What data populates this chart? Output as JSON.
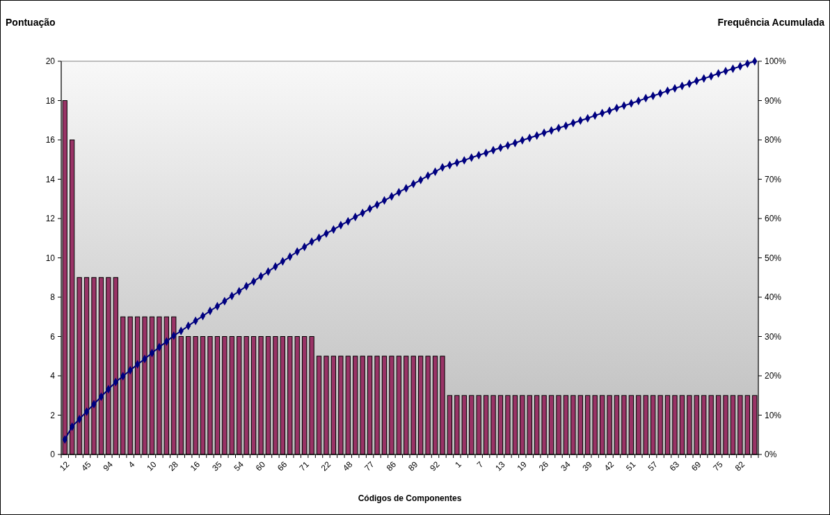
{
  "chart_data": {
    "type": "bar",
    "ylabel": "Pontuação",
    "y2label": "Frequência Acumulada",
    "xlabel": "Códigos de Componentes",
    "categories": [
      "12",
      null,
      null,
      "45",
      null,
      null,
      "94",
      null,
      null,
      "4",
      null,
      null,
      "10",
      null,
      null,
      "28",
      null,
      null,
      "16",
      null,
      null,
      "35",
      null,
      null,
      "54",
      null,
      null,
      "60",
      null,
      null,
      "66",
      null,
      null,
      "71",
      null,
      null,
      "22",
      null,
      null,
      "48",
      null,
      null,
      "77",
      null,
      null,
      "86",
      null,
      null,
      "89",
      null,
      null,
      "92",
      null,
      null,
      "1",
      null,
      null,
      "7",
      null,
      null,
      "13",
      null,
      null,
      "19",
      null,
      null,
      "26",
      null,
      null,
      "34",
      null,
      null,
      "39",
      null,
      null,
      "42",
      null,
      null,
      "51",
      null,
      null,
      "57",
      null,
      null,
      "63",
      null,
      null,
      "69",
      null,
      null,
      "75",
      null,
      null,
      "82",
      null,
      null
    ],
    "series": [
      {
        "color": "#993366",
        "values": [
          18,
          16,
          9,
          9,
          9,
          9,
          9,
          9,
          7,
          7,
          7,
          7,
          7,
          7,
          7,
          7,
          6,
          6,
          6,
          6,
          6,
          6,
          6,
          6,
          6,
          6,
          6,
          6,
          6,
          6,
          6,
          6,
          6,
          6,
          6,
          5,
          5,
          5,
          5,
          5,
          5,
          5,
          5,
          5,
          5,
          5,
          5,
          5,
          5,
          5,
          5,
          5,
          5,
          3,
          3,
          3,
          3,
          3,
          3,
          3,
          3,
          3,
          3,
          3,
          3,
          3,
          3,
          3,
          3,
          3,
          3,
          3,
          3,
          3,
          3,
          3,
          3,
          3,
          3,
          3,
          3,
          3,
          3,
          3,
          3,
          3,
          3,
          3,
          3,
          3,
          3,
          3,
          3,
          3,
          3,
          3
        ]
      },
      {
        "type": "line",
        "axis": "y2",
        "color": "#000080",
        "marker": "diamond",
        "line_style": "solid",
        "values": [
          3.8,
          7.1,
          9.0,
          10.9,
          12.8,
          14.7,
          16.6,
          18.4,
          19.9,
          21.4,
          22.9,
          24.3,
          25.8,
          27.3,
          28.7,
          30.2,
          31.4,
          32.7,
          34.0,
          35.2,
          36.5,
          37.7,
          39.0,
          40.3,
          41.5,
          42.8,
          44.0,
          45.3,
          46.5,
          47.8,
          49.1,
          50.3,
          51.6,
          52.8,
          54.1,
          55.1,
          56.2,
          57.2,
          58.3,
          59.3,
          60.4,
          61.4,
          62.5,
          63.5,
          64.6,
          65.6,
          66.7,
          67.7,
          68.8,
          69.8,
          70.9,
          71.9,
          73.0,
          73.6,
          74.2,
          74.8,
          75.5,
          76.1,
          76.7,
          77.4,
          78.0,
          78.6,
          79.2,
          79.9,
          80.5,
          81.1,
          81.8,
          82.4,
          83.0,
          83.6,
          84.3,
          84.9,
          85.5,
          86.2,
          86.8,
          87.4,
          88.1,
          88.7,
          89.3,
          89.9,
          90.6,
          91.2,
          91.8,
          92.5,
          93.1,
          93.7,
          94.3,
          95.0,
          95.6,
          96.2,
          96.9,
          97.5,
          98.1,
          98.7,
          99.4,
          100.0
        ]
      }
    ],
    "ylim": [
      0,
      20
    ],
    "yticks": [
      0,
      2,
      4,
      6,
      8,
      10,
      12,
      14,
      16,
      18,
      20
    ],
    "y2lim": [
      0,
      100
    ],
    "y2ticks": [
      {
        "value": 0,
        "label": "0%"
      },
      {
        "value": 10,
        "label": "10%"
      },
      {
        "value": 20,
        "label": "20%"
      },
      {
        "value": 30,
        "label": "30%"
      },
      {
        "value": 40,
        "label": "40%"
      },
      {
        "value": 50,
        "label": "50%"
      },
      {
        "value": 60,
        "label": "60%"
      },
      {
        "value": 70,
        "label": "70%"
      },
      {
        "value": 80,
        "label": "80%"
      },
      {
        "value": 90,
        "label": "90%"
      },
      {
        "value": 100,
        "label": "100%"
      }
    ],
    "grid": false
  }
}
